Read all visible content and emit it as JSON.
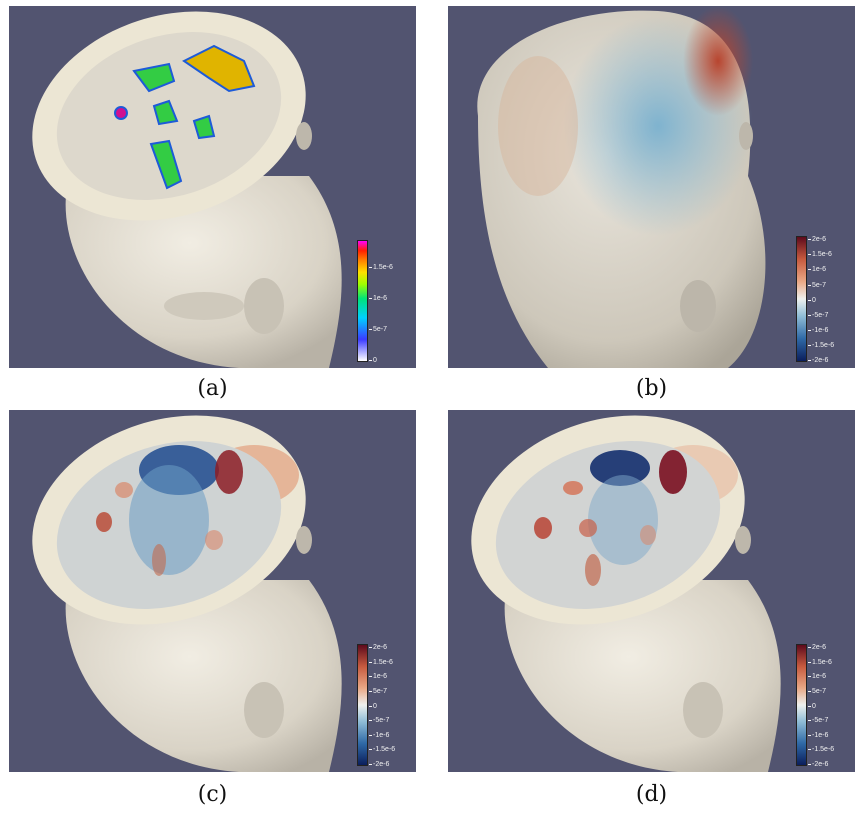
{
  "figure": {
    "panels": [
      {
        "caption": "(a)",
        "colorbar": {
          "scale": "rainbow",
          "ticks": [
            "1.5e-6",
            "1e-6",
            "5e-7",
            "0"
          ]
        }
      },
      {
        "caption": "(b)",
        "colorbar": {
          "scale": "diverging",
          "ticks": [
            "2e-6",
            "1.5e-6",
            "1e-6",
            "5e-7",
            "0",
            "-5e-7",
            "-1e-6",
            "-1.5e-6",
            "-2e-6"
          ]
        }
      },
      {
        "caption": "(c)",
        "colorbar": {
          "scale": "diverging",
          "ticks": [
            "2e-6",
            "1.5e-6",
            "1e-6",
            "5e-7",
            "0",
            "-5e-7",
            "-1e-6",
            "-1.5e-6",
            "-2e-6"
          ]
        }
      },
      {
        "caption": "(d)",
        "colorbar": {
          "scale": "diverging",
          "ticks": [
            "2e-6",
            "1.5e-6",
            "1e-6",
            "5e-7",
            "0",
            "-5e-7",
            "-1e-6",
            "-1.5e-6",
            "-2e-6"
          ]
        }
      }
    ],
    "colors": {
      "background": "#525470",
      "skin": "#e7e2d6",
      "rainbow_high": "#ff00ff",
      "diverging_high": "#5d0a1c",
      "diverging_low": "#0b1e5c"
    }
  }
}
